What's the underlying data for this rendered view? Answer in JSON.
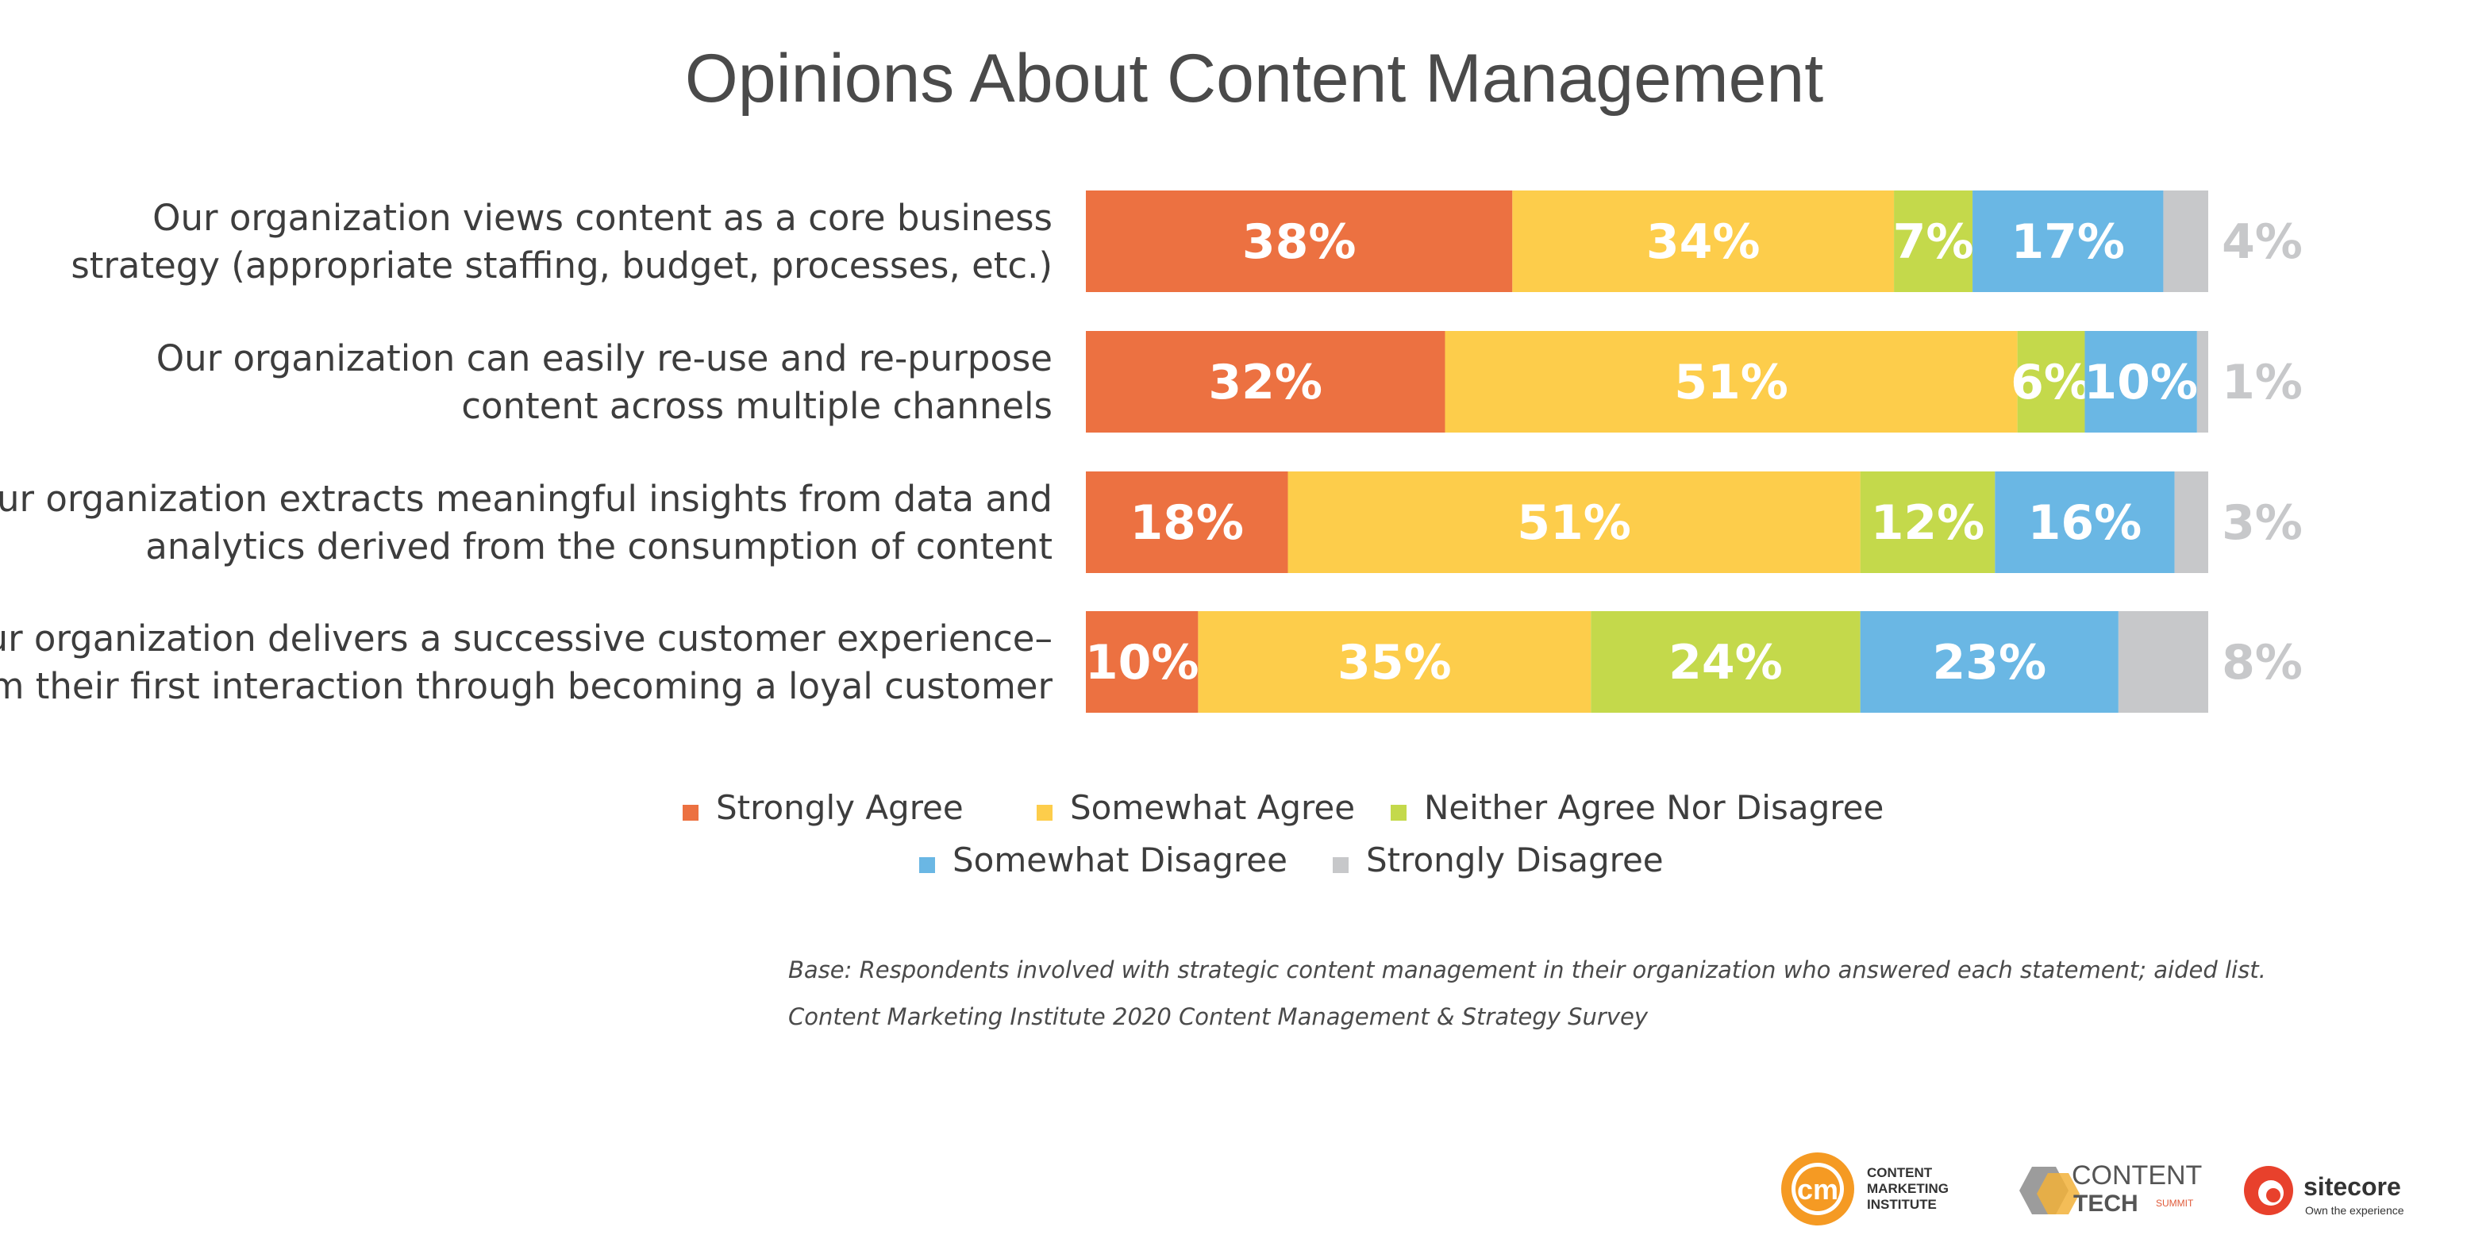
{
  "chart_data": {
    "type": "bar",
    "orientation": "horizontal",
    "stacked": true,
    "title": "Opinions About Content Management",
    "categories": [
      [
        "Our organization views content as a core business",
        "strategy (appropriate staffing, budget, processes, etc.)"
      ],
      [
        "Our organization can easily re-use and re-purpose",
        "content across multiple channels"
      ],
      [
        "Our organization extracts meaningful insights from data and",
        "analytics derived from the consumption of content"
      ],
      [
        "Our organization delivers a successive customer experience–",
        "from their first interaction through becoming a loyal customer"
      ]
    ],
    "series": [
      {
        "name": "Strongly Agree",
        "color": "#ec7141",
        "values": [
          38,
          32,
          18,
          10
        ]
      },
      {
        "name": "Somewhat Agree",
        "color": "#fdcd4b",
        "values": [
          34,
          51,
          51,
          35
        ]
      },
      {
        "name": "Neither Agree Nor Disagree",
        "color": "#c4d94b",
        "values": [
          7,
          6,
          12,
          24
        ]
      },
      {
        "name": "Somewhat Disagree",
        "color": "#6ab7e4",
        "values": [
          17,
          10,
          16,
          23
        ]
      },
      {
        "name": "Strongly Disagree",
        "color": "#c7c8ca",
        "values": [
          4,
          1,
          3,
          8
        ]
      }
    ],
    "value_suffix": "%",
    "outside_label_series": "Strongly Disagree",
    "legend_position": "bottom",
    "grid": false
  },
  "notes": [
    "Base: Respondents involved with strategic content management in their organization who answered each statement; aided list.",
    "Content Marketing Institute 2020 Content Management & Strategy Survey"
  ],
  "logos": {
    "cmi": {
      "mark": "cm",
      "lines": [
        "CONTENT",
        "MARKETING",
        "INSTITUTE"
      ],
      "mark_color": "#f59a23"
    },
    "content_tech": {
      "lines": [
        "CONTENT",
        "TECH"
      ],
      "sub": "SUMMIT",
      "color": "#e05a3a"
    },
    "sitecore": {
      "name": "sitecore",
      "tagline": "Own the experience",
      "color": "#e8412c"
    }
  }
}
